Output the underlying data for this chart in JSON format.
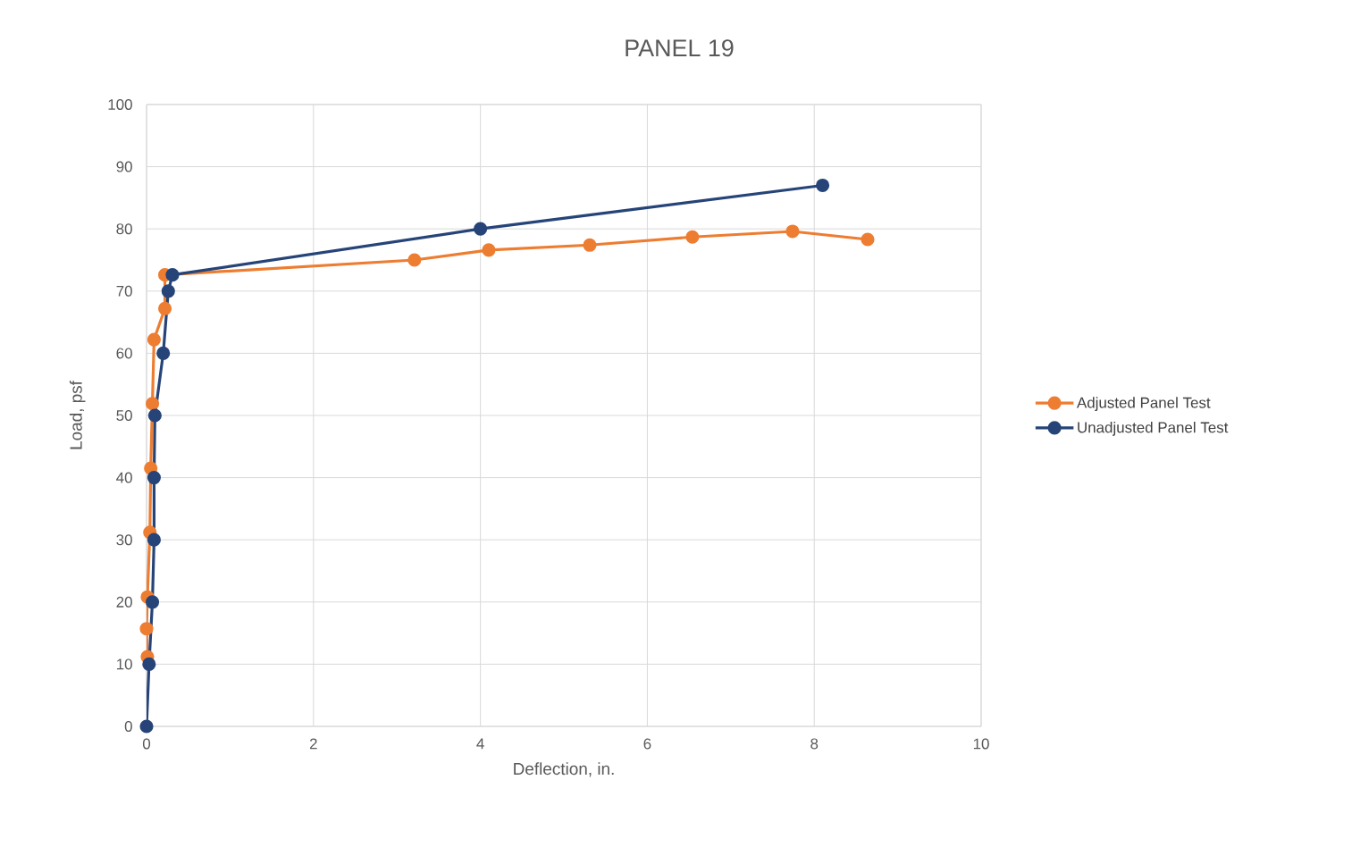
{
  "chart_data": {
    "type": "line",
    "title": "PANEL 19",
    "xlabel": "Deflection, in.",
    "ylabel": "Load, psf",
    "xlim": [
      0,
      10
    ],
    "ylim": [
      0,
      100
    ],
    "xticks": [
      0,
      2,
      4,
      6,
      8,
      10
    ],
    "yticks": [
      0,
      10,
      20,
      30,
      40,
      50,
      60,
      70,
      80,
      90,
      100
    ],
    "grid": true,
    "legend": "right",
    "marker": "circle",
    "line_style": "solid",
    "series": [
      {
        "name": "Adjusted Panel Test",
        "color": "#ed7d31",
        "x": [
          0.01,
          0.0,
          0.01,
          0.04,
          0.05,
          0.07,
          0.09,
          0.22,
          0.22,
          3.21,
          4.1,
          5.31,
          6.54,
          7.74,
          8.64
        ],
        "values": [
          11.2,
          15.7,
          20.8,
          31.2,
          41.5,
          51.9,
          62.2,
          67.2,
          72.6,
          75.0,
          76.6,
          77.4,
          78.7,
          79.6,
          78.3
        ]
      },
      {
        "name": "Unadjusted Panel Test",
        "color": "#264478",
        "x": [
          0,
          0.03,
          0.07,
          0.09,
          0.09,
          0.1,
          0.2,
          0.26,
          0.31,
          4.0,
          8.1
        ],
        "values": [
          0,
          10,
          20,
          30,
          40,
          50,
          60,
          70,
          72.6,
          80,
          87
        ]
      }
    ]
  }
}
